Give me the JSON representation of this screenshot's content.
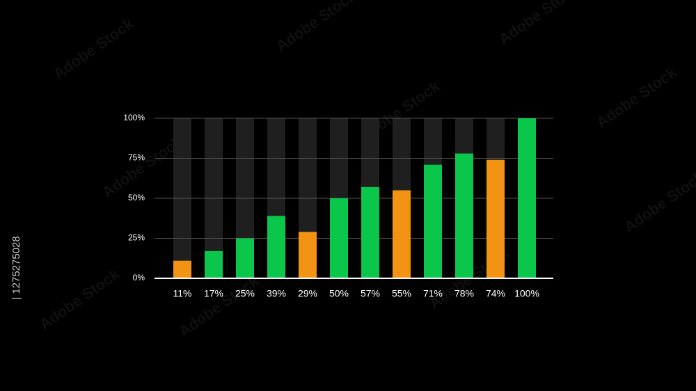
{
  "chart_data": {
    "type": "bar",
    "values": [
      11,
      17,
      25,
      39,
      29,
      50,
      57,
      55,
      71,
      78,
      74,
      100
    ],
    "value_labels": [
      "11%",
      "17%",
      "25%",
      "39%",
      "29%",
      "50%",
      "57%",
      "55%",
      "71%",
      "78%",
      "74%",
      "100%"
    ],
    "colors": [
      "#f39313",
      "#0ac64a",
      "#0ac64a",
      "#0ac64a",
      "#f39313",
      "#0ac64a",
      "#0ac64a",
      "#f39313",
      "#0ac64a",
      "#0ac64a",
      "#f39313",
      "#0ac64a"
    ],
    "track_color": "#1f1f1f",
    "ylim": [
      0,
      100
    ],
    "yticks": [
      {
        "value": 0,
        "label": "0%"
      },
      {
        "value": 25,
        "label": "25%"
      },
      {
        "value": 50,
        "label": "50%"
      },
      {
        "value": 75,
        "label": "75%"
      },
      {
        "value": 100,
        "label": "100%"
      }
    ],
    "grid": true
  },
  "watermark": {
    "text": "Adobe Stock",
    "id": "| 1275275028"
  }
}
